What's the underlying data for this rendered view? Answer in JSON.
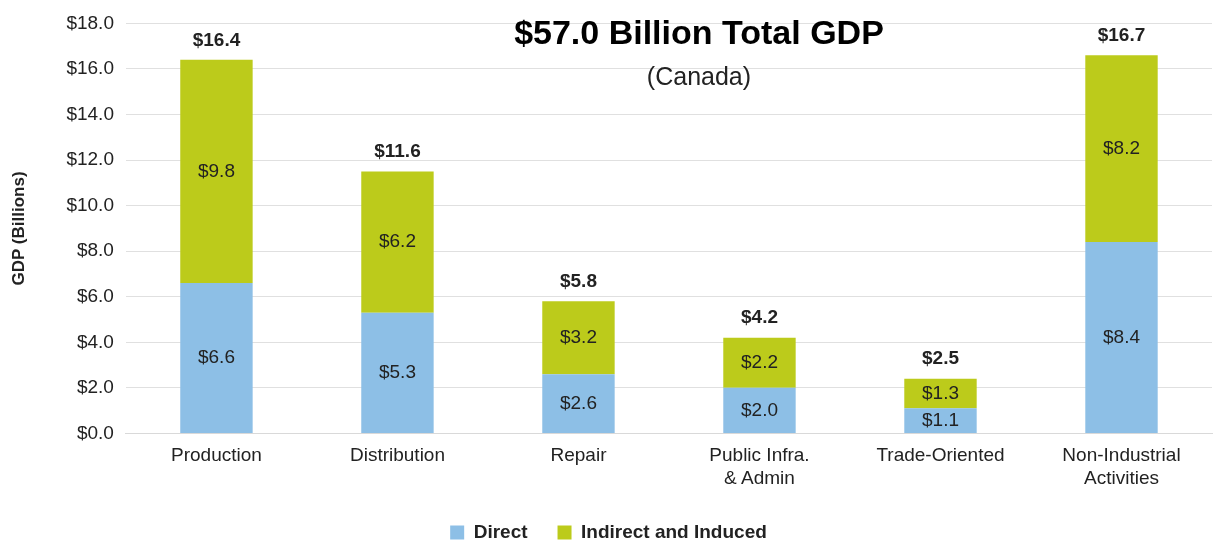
{
  "chart_data": {
    "type": "bar",
    "title": "$57.0 Billion Total GDP",
    "subtitle": "(Canada)",
    "ylabel": "GDP (Billions)",
    "categories": [
      "Production",
      "Distribution",
      "Repair",
      "Public Infra. & Admin",
      "Trade-Oriented",
      "Non-Industrial Activities"
    ],
    "stacked": true,
    "series": [
      {
        "name": "Direct",
        "color": "#8dbfe6",
        "values": [
          6.6,
          5.3,
          2.6,
          2.0,
          1.1,
          8.4
        ],
        "value_labels": [
          "$6.6",
          "$5.3",
          "$2.6",
          "$2.0",
          "$1.1",
          "$8.4"
        ]
      },
      {
        "name": "Indirect and Induced",
        "color": "#bccb1b",
        "values": [
          9.8,
          6.2,
          3.2,
          2.2,
          1.3,
          8.2
        ],
        "value_labels": [
          "$9.8",
          "$6.2",
          "$3.2",
          "$2.2",
          "$1.3",
          "$8.2"
        ]
      }
    ],
    "totals": [
      "$16.4",
      "$11.6",
      "$5.8",
      "$4.2",
      "$2.5",
      "$16.7"
    ],
    "ylim": [
      0,
      18
    ],
    "yticks": [
      {
        "value": 0,
        "label": "$0.0"
      },
      {
        "value": 2,
        "label": "$2.0"
      },
      {
        "value": 4,
        "label": "$4.0"
      },
      {
        "value": 6,
        "label": "$6.0"
      },
      {
        "value": 8,
        "label": "$8.0"
      },
      {
        "value": 10,
        "label": "$10.0"
      },
      {
        "value": 12,
        "label": "$12.0"
      },
      {
        "value": 14,
        "label": "$14.0"
      },
      {
        "value": 16,
        "label": "$16.0"
      },
      {
        "value": 18,
        "label": "$18.0"
      }
    ],
    "grid": "y",
    "legend": "bottom"
  }
}
